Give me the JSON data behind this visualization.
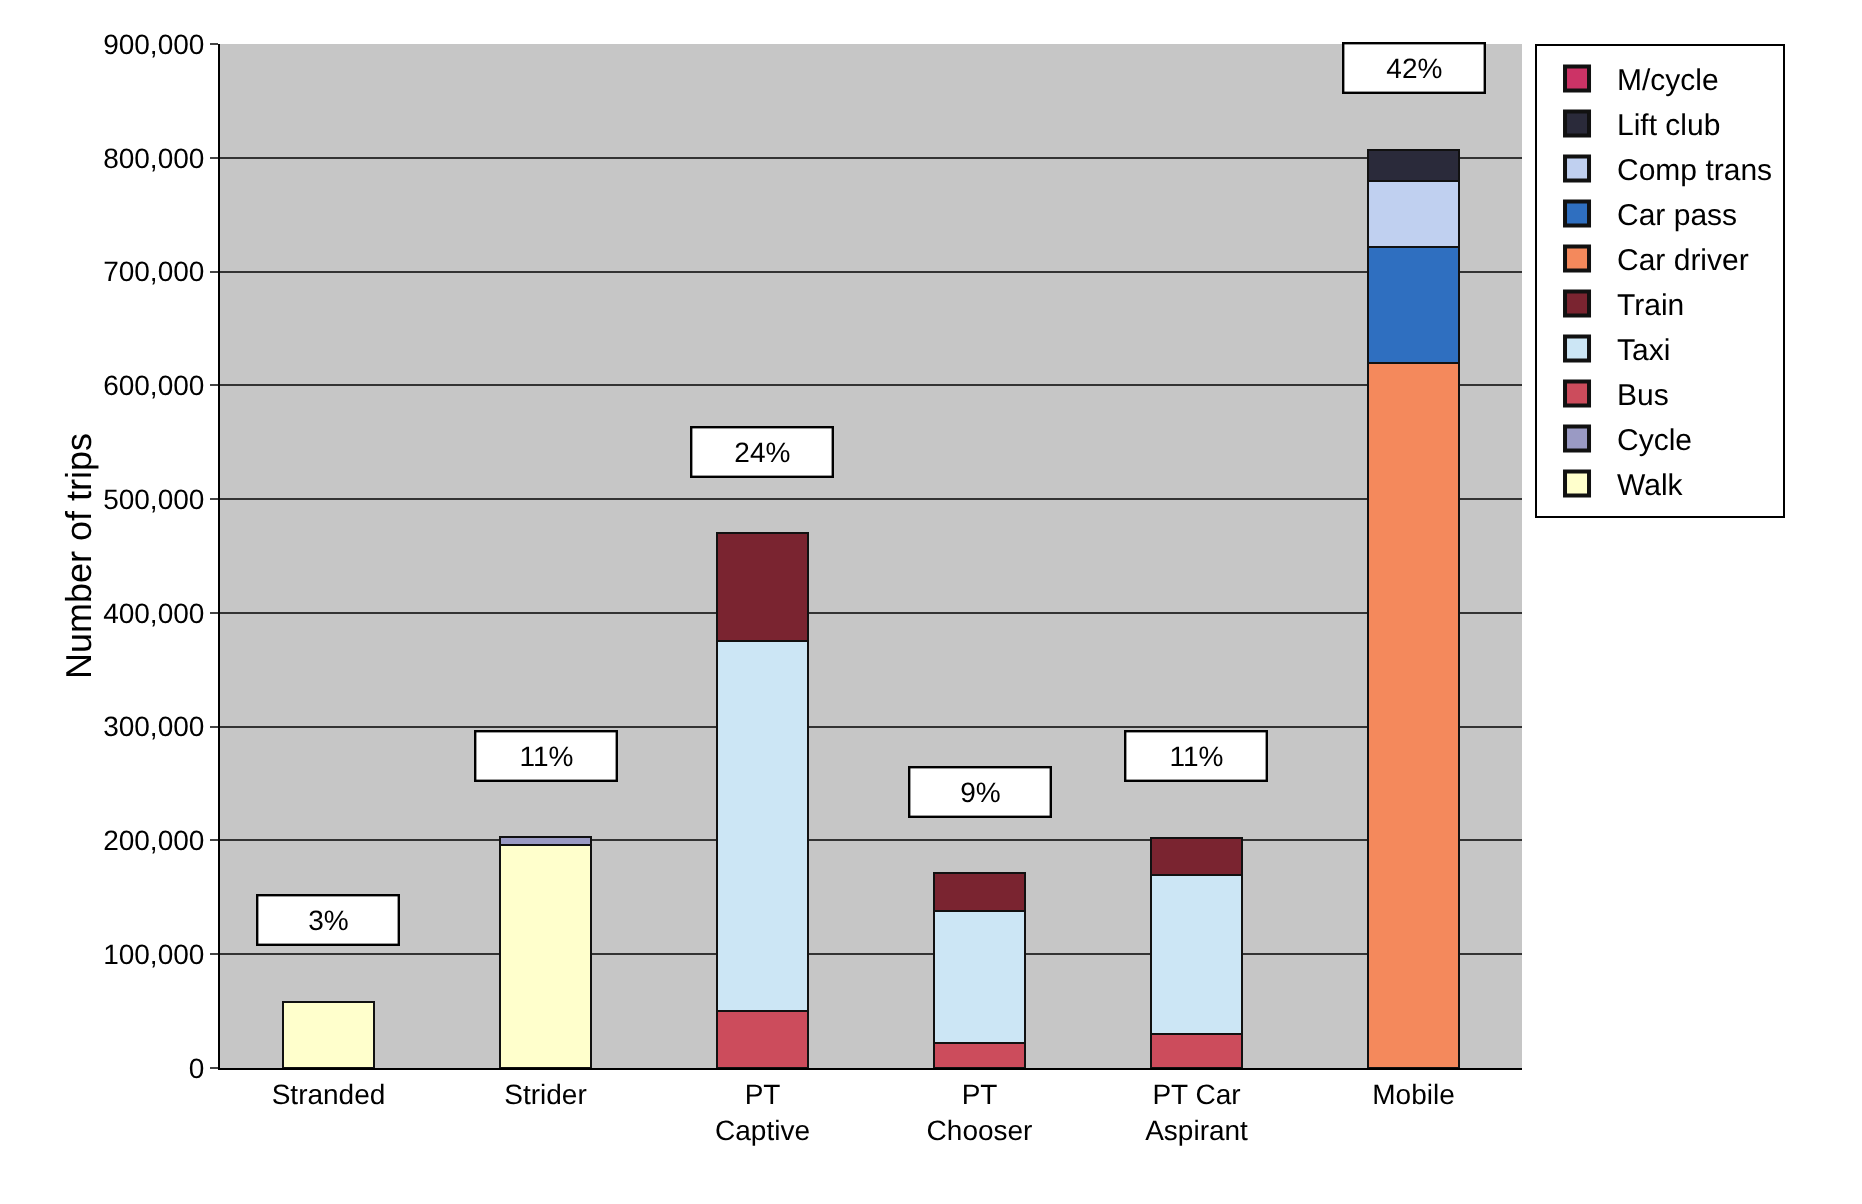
{
  "chart_data": {
    "type": "bar",
    "stacked": true,
    "ylabel": "Number of trips",
    "categories": [
      "Stranded",
      "Strider",
      "PT\nCaptive",
      "PT\nChooser",
      "PT Car\nAspirant",
      "Mobile"
    ],
    "series": [
      {
        "name": "Walk",
        "color": "#ffffcc",
        "values": [
          58000,
          196000,
          null,
          null,
          null,
          null
        ]
      },
      {
        "name": "Cycle",
        "color": "#9a9ac4",
        "values": [
          null,
          7000,
          null,
          null,
          null,
          null
        ]
      },
      {
        "name": "Bus",
        "color": "#cc4c5c",
        "values": [
          null,
          null,
          50000,
          22000,
          30000,
          null
        ]
      },
      {
        "name": "Taxi",
        "color": "#cce6f5",
        "values": [
          null,
          null,
          325000,
          116000,
          140000,
          null
        ]
      },
      {
        "name": "Train",
        "color": "#7a2430",
        "values": [
          null,
          null,
          95000,
          33000,
          32000,
          null
        ]
      },
      {
        "name": "Car driver",
        "color": "#f4895c",
        "values": [
          null,
          null,
          null,
          null,
          null,
          620000
        ]
      },
      {
        "name": "Car pass",
        "color": "#2f6fc0",
        "values": [
          null,
          null,
          null,
          null,
          null,
          102000
        ]
      },
      {
        "name": "Comp trans",
        "color": "#c0d0f0",
        "values": [
          null,
          null,
          null,
          null,
          null,
          58000
        ]
      },
      {
        "name": "Lift club",
        "color": "#2a2a3a",
        "values": [
          null,
          null,
          null,
          null,
          null,
          27000
        ]
      },
      {
        "name": "M/cycle",
        "color": "#cc3366",
        "values": [
          null,
          null,
          null,
          null,
          null,
          null
        ]
      }
    ],
    "ylim": [
      0,
      900000
    ],
    "yticks": [
      {
        "value": 0,
        "label": "0"
      },
      {
        "value": 100000,
        "label": "100,000"
      },
      {
        "value": 200000,
        "label": "200,000"
      },
      {
        "value": 300000,
        "label": "300,000"
      },
      {
        "value": 400000,
        "label": "400,000"
      },
      {
        "value": 500000,
        "label": "500,000"
      },
      {
        "value": 600000,
        "label": "600,000"
      },
      {
        "value": 700000,
        "label": "700,000"
      },
      {
        "value": 800000,
        "label": "800,000"
      },
      {
        "value": 900000,
        "label": "900,000"
      }
    ],
    "grid": "y",
    "legend": "right",
    "annotations": [
      "3%",
      "11%",
      "24%",
      "9%",
      "11%",
      "42%"
    ]
  }
}
